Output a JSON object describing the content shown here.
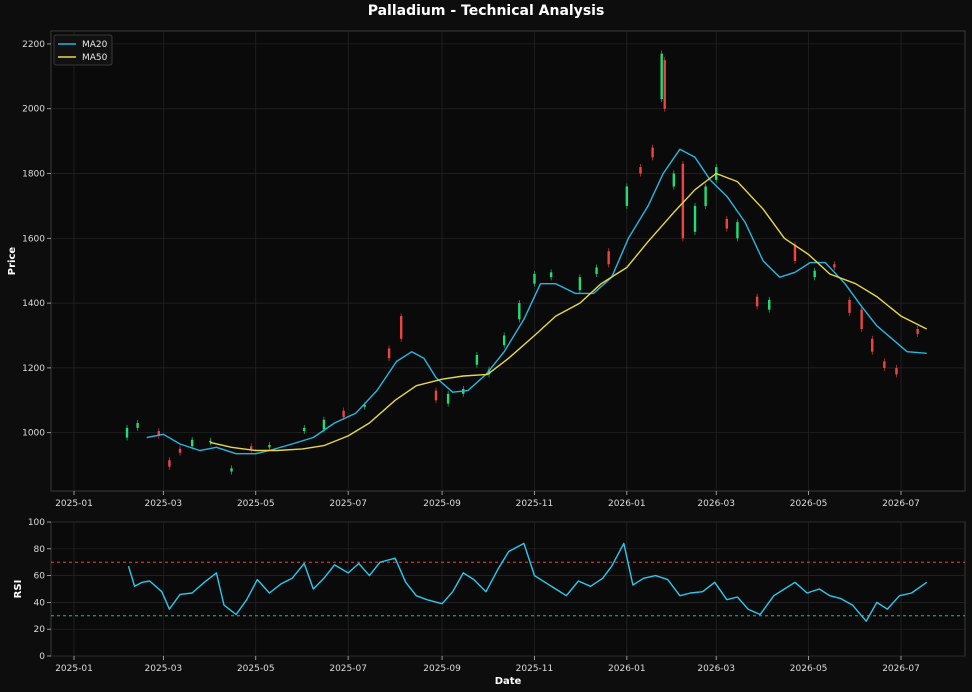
{
  "chart_data": [
    {
      "type": "line",
      "title": "Palladium - Technical Analysis",
      "ylabel": "Price",
      "xlabel": "",
      "ylim": [
        820,
        2240
      ],
      "yticks": [
        1000,
        1200,
        1400,
        1600,
        1800,
        2000,
        2200
      ],
      "x_ticks": [
        "2025-01",
        "2025-03",
        "2025-05",
        "2025-07",
        "2025-09",
        "2025-11",
        "2026-01",
        "2026-03",
        "2026-05",
        "2026-07"
      ],
      "grid": true,
      "legend": "top-left",
      "candlestick": true,
      "up_color": "#22dd77",
      "down_color": "#ee4444",
      "series": [
        {
          "name": "MA20",
          "color": "#29b6e0",
          "points": [
            [
              "2025-02-18",
              985
            ],
            [
              "2025-03-01",
              995
            ],
            [
              "2025-03-12",
              965
            ],
            [
              "2025-03-25",
              945
            ],
            [
              "2025-04-05",
              955
            ],
            [
              "2025-04-18",
              935
            ],
            [
              "2025-05-01",
              935
            ],
            [
              "2025-05-10",
              945
            ],
            [
              "2025-05-25",
              965
            ],
            [
              "2025-06-08",
              985
            ],
            [
              "2025-06-22",
              1030
            ],
            [
              "2025-07-06",
              1060
            ],
            [
              "2025-07-20",
              1130
            ],
            [
              "2025-08-02",
              1220
            ],
            [
              "2025-08-12",
              1250
            ],
            [
              "2025-08-20",
              1230
            ],
            [
              "2025-08-28",
              1170
            ],
            [
              "2025-09-08",
              1125
            ],
            [
              "2025-09-18",
              1130
            ],
            [
              "2025-09-30",
              1180
            ],
            [
              "2025-10-12",
              1250
            ],
            [
              "2025-10-25",
              1350
            ],
            [
              "2025-11-05",
              1460
            ],
            [
              "2025-11-15",
              1460
            ],
            [
              "2025-11-28",
              1430
            ],
            [
              "2025-12-10",
              1430
            ],
            [
              "2025-12-22",
              1480
            ],
            [
              "2026-01-02",
              1600
            ],
            [
              "2026-01-15",
              1700
            ],
            [
              "2026-01-25",
              1800
            ],
            [
              "2026-02-05",
              1875
            ],
            [
              "2026-02-15",
              1850
            ],
            [
              "2026-02-25",
              1780
            ],
            [
              "2026-03-08",
              1730
            ],
            [
              "2026-03-20",
              1650
            ],
            [
              "2026-04-01",
              1530
            ],
            [
              "2026-04-12",
              1480
            ],
            [
              "2026-04-22",
              1495
            ],
            [
              "2026-05-02",
              1525
            ],
            [
              "2026-05-12",
              1525
            ],
            [
              "2026-05-25",
              1460
            ],
            [
              "2026-06-05",
              1390
            ],
            [
              "2026-06-15",
              1330
            ],
            [
              "2026-06-25",
              1290
            ],
            [
              "2026-07-05",
              1250
            ],
            [
              "2026-07-18",
              1245
            ]
          ]
        },
        {
          "name": "MA50",
          "color": "#e6d84a",
          "points": [
            [
              "2025-04-01",
              970
            ],
            [
              "2025-04-15",
              955
            ],
            [
              "2025-05-01",
              945
            ],
            [
              "2025-05-15",
              945
            ],
            [
              "2025-06-01",
              950
            ],
            [
              "2025-06-15",
              960
            ],
            [
              "2025-07-01",
              990
            ],
            [
              "2025-07-15",
              1030
            ],
            [
              "2025-08-01",
              1100
            ],
            [
              "2025-08-15",
              1145
            ],
            [
              "2025-09-01",
              1165
            ],
            [
              "2025-09-15",
              1175
            ],
            [
              "2025-10-01",
              1180
            ],
            [
              "2025-10-15",
              1230
            ],
            [
              "2025-11-01",
              1300
            ],
            [
              "2025-11-15",
              1360
            ],
            [
              "2025-12-01",
              1400
            ],
            [
              "2025-12-15",
              1460
            ],
            [
              "2026-01-01",
              1510
            ],
            [
              "2026-01-15",
              1590
            ],
            [
              "2026-02-01",
              1680
            ],
            [
              "2026-02-15",
              1750
            ],
            [
              "2026-03-01",
              1800
            ],
            [
              "2026-03-15",
              1775
            ],
            [
              "2026-04-01",
              1690
            ],
            [
              "2026-04-15",
              1600
            ],
            [
              "2026-05-01",
              1550
            ],
            [
              "2026-05-15",
              1490
            ],
            [
              "2026-06-01",
              1460
            ],
            [
              "2026-06-15",
              1420
            ],
            [
              "2026-07-01",
              1360
            ],
            [
              "2026-07-18",
              1320
            ]
          ]
        }
      ],
      "candles": [
        [
          "2025-02-05",
          985,
          1015
        ],
        [
          "2025-02-12",
          1015,
          1030
        ],
        [
          "2025-02-26",
          1005,
          990
        ],
        [
          "2025-03-05",
          915,
          895
        ],
        [
          "2025-03-12",
          950,
          938
        ],
        [
          "2025-03-20",
          958,
          978
        ],
        [
          "2025-04-01",
          970,
          975
        ],
        [
          "2025-04-15",
          880,
          890
        ],
        [
          "2025-04-28",
          958,
          948
        ],
        [
          "2025-05-10",
          955,
          962
        ],
        [
          "2025-06-02",
          1005,
          1015
        ],
        [
          "2025-06-15",
          1010,
          1040
        ],
        [
          "2025-06-28",
          1068,
          1048
        ],
        [
          "2025-07-12",
          1080,
          1085
        ],
        [
          "2025-07-28",
          1260,
          1230
        ],
        [
          "2025-08-05",
          1360,
          1290
        ],
        [
          "2025-08-28",
          1130,
          1100
        ],
        [
          "2025-09-05",
          1090,
          1120
        ],
        [
          "2025-09-15",
          1120,
          1135
        ],
        [
          "2025-09-24",
          1210,
          1240
        ],
        [
          "2025-10-02",
          1180,
          1195
        ],
        [
          "2025-10-12",
          1270,
          1300
        ],
        [
          "2025-10-22",
          1350,
          1400
        ],
        [
          "2025-11-01",
          1460,
          1490
        ],
        [
          "2025-11-12",
          1480,
          1495
        ],
        [
          "2025-12-01",
          1440,
          1480
        ],
        [
          "2025-12-12",
          1490,
          1510
        ],
        [
          "2025-12-20",
          1560,
          1520
        ],
        [
          "2026-01-01",
          1700,
          1760
        ],
        [
          "2026-01-10",
          1820,
          1800
        ],
        [
          "2026-01-18",
          1880,
          1850
        ],
        [
          "2026-01-24",
          2030,
          2170
        ],
        [
          "2026-01-26",
          2150,
          2000
        ],
        [
          "2026-02-01",
          1760,
          1800
        ],
        [
          "2026-02-07",
          1830,
          1600
        ],
        [
          "2026-02-15",
          1620,
          1700
        ],
        [
          "2026-02-22",
          1700,
          1760
        ],
        [
          "2026-03-01",
          1780,
          1820
        ],
        [
          "2026-03-08",
          1660,
          1630
        ],
        [
          "2026-03-15",
          1600,
          1650
        ],
        [
          "2026-03-28",
          1420,
          1390
        ],
        [
          "2026-04-05",
          1380,
          1410
        ],
        [
          "2026-04-22",
          1580,
          1530
        ],
        [
          "2026-05-05",
          1480,
          1500
        ],
        [
          "2026-05-18",
          1520,
          1510
        ],
        [
          "2026-05-28",
          1410,
          1370
        ],
        [
          "2026-06-05",
          1380,
          1320
        ],
        [
          "2026-06-12",
          1290,
          1250
        ],
        [
          "2026-06-20",
          1220,
          1200
        ],
        [
          "2026-06-28",
          1200,
          1180
        ],
        [
          "2026-07-12",
          1320,
          1305
        ]
      ]
    },
    {
      "type": "line",
      "title": "",
      "ylabel": "RSI",
      "xlabel": "Date",
      "ylim": [
        0,
        100
      ],
      "yticks": [
        0,
        20,
        40,
        60,
        80,
        100
      ],
      "x_ticks": [
        "2025-01",
        "2025-03",
        "2025-05",
        "2025-07",
        "2025-09",
        "2025-11",
        "2026-01",
        "2026-03",
        "2026-05",
        "2026-07"
      ],
      "hlines": [
        {
          "y": 70,
          "color": "#e04848"
        },
        {
          "y": 30,
          "color": "#22c07a"
        }
      ],
      "series": [
        {
          "name": "RSI",
          "color": "#29c9ee",
          "points": [
            [
              "2025-02-06",
              67
            ],
            [
              "2025-02-10",
              52
            ],
            [
              "2025-02-15",
              55
            ],
            [
              "2025-02-20",
              56
            ],
            [
              "2025-02-28",
              48
            ],
            [
              "2025-03-05",
              35
            ],
            [
              "2025-03-12",
              46
            ],
            [
              "2025-03-20",
              47
            ],
            [
              "2025-03-28",
              55
            ],
            [
              "2025-04-05",
              62
            ],
            [
              "2025-04-10",
              38
            ],
            [
              "2025-04-18",
              31
            ],
            [
              "2025-04-25",
              42
            ],
            [
              "2025-05-02",
              57
            ],
            [
              "2025-05-10",
              47
            ],
            [
              "2025-05-18",
              54
            ],
            [
              "2025-05-25",
              58
            ],
            [
              "2025-06-02",
              69
            ],
            [
              "2025-06-08",
              50
            ],
            [
              "2025-06-15",
              58
            ],
            [
              "2025-06-22",
              68
            ],
            [
              "2025-07-01",
              62
            ],
            [
              "2025-07-08",
              69
            ],
            [
              "2025-07-15",
              60
            ],
            [
              "2025-07-22",
              70
            ],
            [
              "2025-08-01",
              73
            ],
            [
              "2025-08-08",
              55
            ],
            [
              "2025-08-15",
              45
            ],
            [
              "2025-08-22",
              42
            ],
            [
              "2025-09-01",
              39
            ],
            [
              "2025-09-08",
              48
            ],
            [
              "2025-09-15",
              62
            ],
            [
              "2025-09-22",
              57
            ],
            [
              "2025-09-30",
              48
            ],
            [
              "2025-10-08",
              65
            ],
            [
              "2025-10-15",
              78
            ],
            [
              "2025-10-25",
              84
            ],
            [
              "2025-11-01",
              60
            ],
            [
              "2025-11-08",
              55
            ],
            [
              "2025-11-15",
              50
            ],
            [
              "2025-11-22",
              45
            ],
            [
              "2025-11-30",
              56
            ],
            [
              "2025-12-08",
              52
            ],
            [
              "2025-12-16",
              58
            ],
            [
              "2025-12-22",
              67
            ],
            [
              "2025-12-30",
              84
            ],
            [
              "2026-01-05",
              53
            ],
            [
              "2026-01-12",
              58
            ],
            [
              "2026-01-20",
              60
            ],
            [
              "2026-01-28",
              57
            ],
            [
              "2026-02-05",
              45
            ],
            [
              "2026-02-12",
              47
            ],
            [
              "2026-02-20",
              48
            ],
            [
              "2026-02-28",
              55
            ],
            [
              "2026-03-08",
              42
            ],
            [
              "2026-03-15",
              44
            ],
            [
              "2026-03-22",
              35
            ],
            [
              "2026-03-30",
              31
            ],
            [
              "2026-04-08",
              45
            ],
            [
              "2026-04-15",
              50
            ],
            [
              "2026-04-22",
              55
            ],
            [
              "2026-04-30",
              47
            ],
            [
              "2026-05-08",
              50
            ],
            [
              "2026-05-15",
              45
            ],
            [
              "2026-05-22",
              43
            ],
            [
              "2026-05-30",
              38
            ],
            [
              "2026-06-08",
              26
            ],
            [
              "2026-06-15",
              40
            ],
            [
              "2026-06-22",
              35
            ],
            [
              "2026-06-30",
              45
            ],
            [
              "2026-07-08",
              47
            ],
            [
              "2026-07-18",
              55
            ]
          ]
        }
      ]
    }
  ]
}
